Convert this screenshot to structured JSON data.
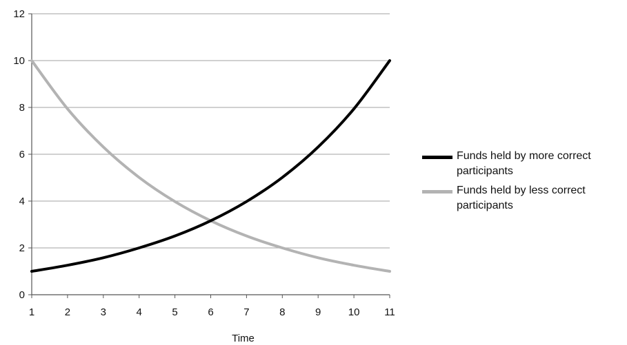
{
  "chart_data": {
    "type": "line",
    "xlabel": "Time",
    "ylabel": "",
    "x": [
      1,
      2,
      3,
      4,
      5,
      6,
      7,
      8,
      9,
      10,
      11
    ],
    "xlim": [
      1,
      11
    ],
    "ylim": [
      0,
      12
    ],
    "yticks": [
      0,
      2,
      4,
      6,
      8,
      10,
      12
    ],
    "grid": true,
    "legend_position": "right",
    "series": [
      {
        "name": "Funds held by more correct participants",
        "color": "#000000",
        "values": [
          1.0,
          1.26,
          1.58,
          2.0,
          2.51,
          3.16,
          3.98,
          5.01,
          6.31,
          7.94,
          10.0
        ]
      },
      {
        "name": "Funds held by less correct participants",
        "color": "#b3b3b3",
        "values": [
          10.0,
          7.94,
          6.31,
          5.01,
          3.98,
          3.16,
          2.51,
          2.0,
          1.58,
          1.26,
          1.0
        ]
      }
    ]
  }
}
